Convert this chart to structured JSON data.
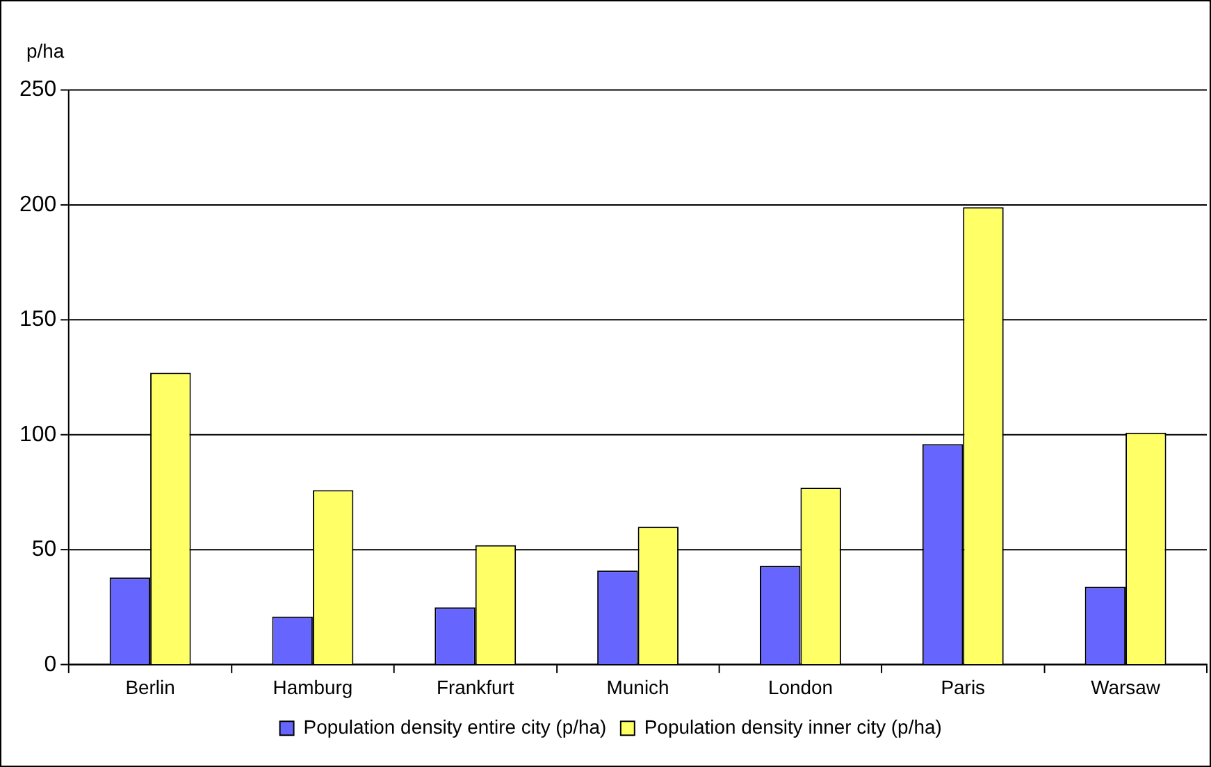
{
  "chart_data": {
    "type": "bar",
    "ylabel": "p/ha",
    "categories": [
      "Berlin",
      "Hamburg",
      "Frankfurt",
      "Munich",
      "London",
      "Paris",
      "Warsaw"
    ],
    "series": [
      {
        "name": "Population density entire city (p/ha)",
        "color": "#6666ff",
        "values": [
          38,
          21,
          25,
          41,
          43,
          96,
          34
        ]
      },
      {
        "name": "Population density inner city (p/ha)",
        "color": "#ffff66",
        "values": [
          127,
          76,
          52,
          60,
          77,
          199,
          101
        ]
      }
    ],
    "ylim": [
      0,
      250
    ],
    "yticks": [
      0,
      50,
      100,
      150,
      200,
      250
    ],
    "grid": "y",
    "legend": "bottom"
  }
}
